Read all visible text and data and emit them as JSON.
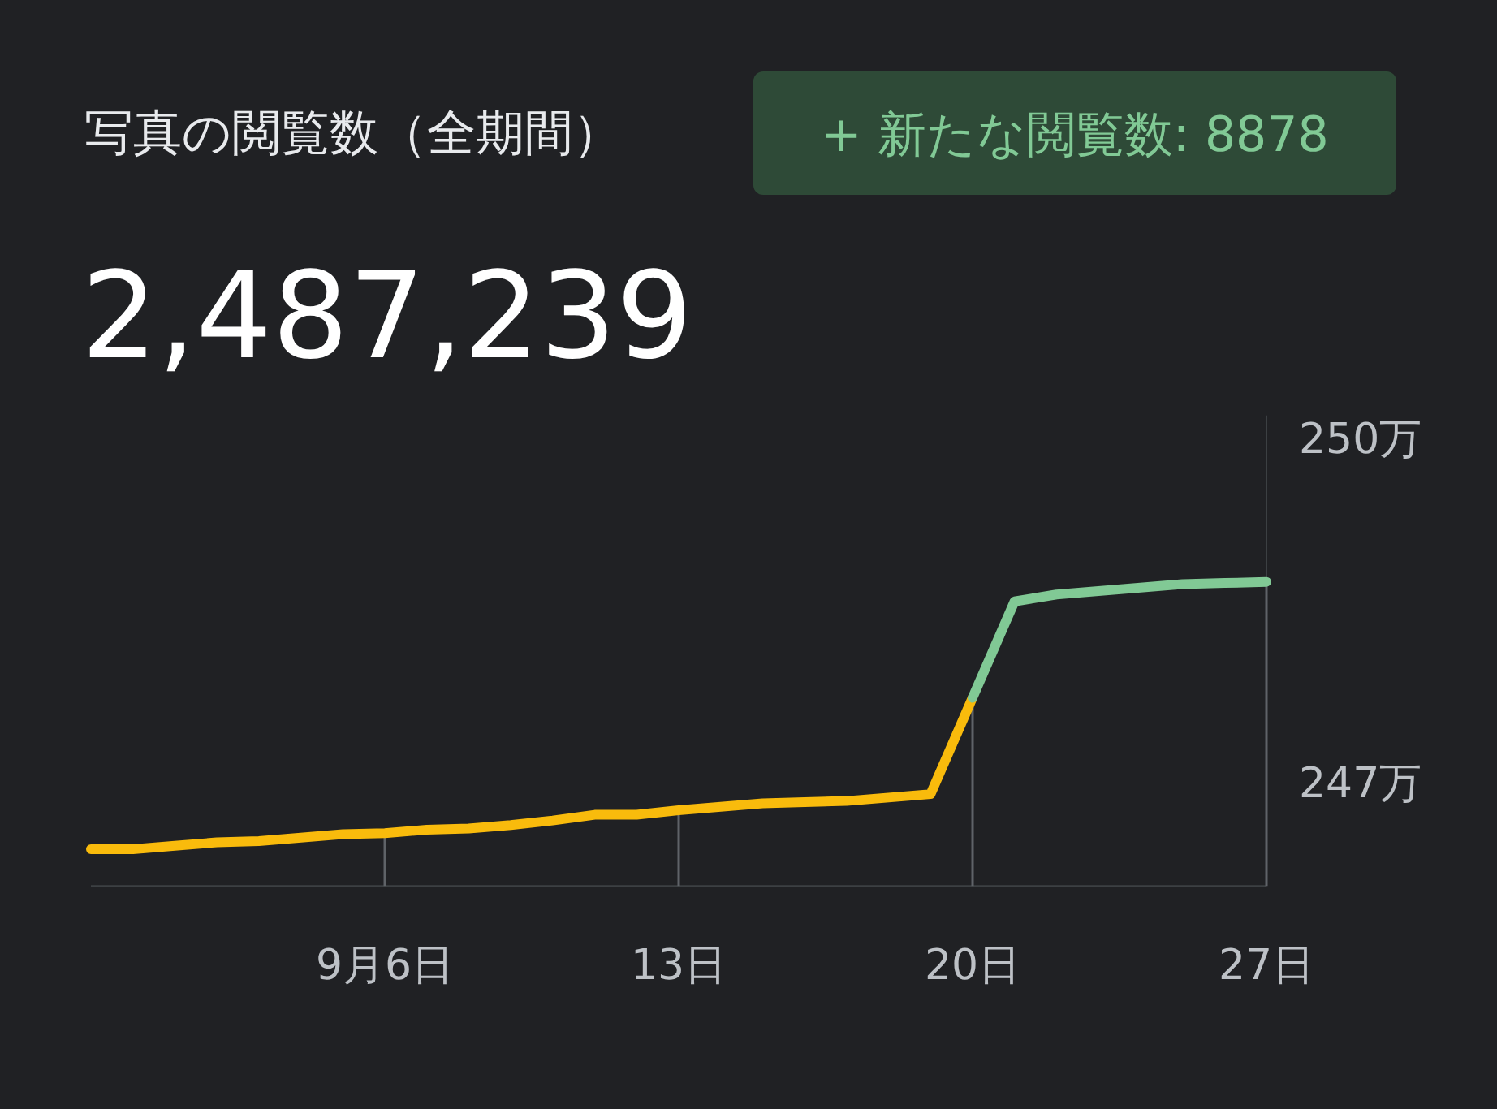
{
  "chart_data": {
    "type": "line",
    "title": "写真の閲覧数（全期間）",
    "subtitle": "2,487,239",
    "annotations": [
      "+ 新たな閲覧数: 8878"
    ],
    "series": [
      {
        "color": "#f9bb0c",
        "x": [
          "--08-30",
          "--08-31",
          "--09-01",
          "--09-02",
          "--09-03",
          "--09-04",
          "--09-05",
          "--09-06",
          "--09-07",
          "--09-08",
          "--09-09",
          "--09-10",
          "--09-11",
          "--09-12",
          "--09-13",
          "--09-14",
          "--09-15",
          "--09-16",
          "--09-17",
          "--09-18",
          "--09-19",
          "--09-20"
        ],
        "values": [
          246.42,
          246.42,
          246.45,
          246.48,
          246.49,
          246.52,
          246.55,
          246.56,
          246.59,
          246.6,
          246.63,
          246.67,
          246.72,
          246.72,
          246.76,
          246.79,
          246.82,
          246.83,
          246.84,
          246.87,
          246.9,
          247.74
        ]
      },
      {
        "color": "#81c995",
        "x": [
          "--09-20",
          "--09-21",
          "--09-22",
          "--09-23",
          "--09-24",
          "--09-25",
          "--09-26",
          "--09-27"
        ],
        "values": [
          247.74,
          248.58,
          248.64,
          248.67,
          248.7,
          248.73,
          248.74,
          248.75
        ]
      }
    ],
    "xlim": [
      "--08-30",
      "--09-27"
    ],
    "xticks": [
      {
        "value": "--09-06",
        "label": "9月6日"
      },
      {
        "value": "--09-13",
        "label": "13日"
      },
      {
        "value": "--09-20",
        "label": "20日"
      },
      {
        "value": "--09-27",
        "label": "27日"
      }
    ],
    "ylim": [
      246.1,
      250.2
    ],
    "yticks": [
      {
        "value": 247,
        "label": "247万"
      },
      {
        "value": 250,
        "label": "250万"
      }
    ],
    "marker": "none",
    "line_style": "solid"
  }
}
